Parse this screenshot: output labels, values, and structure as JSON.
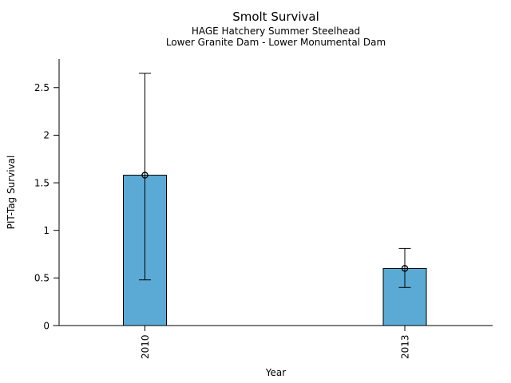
{
  "page": {
    "background_color": "#ffffff",
    "text_color": "#000000"
  },
  "chart_data": {
    "type": "bar",
    "title": "Smolt Survival",
    "subtitle1": "HAGE Hatchery Summer Steelhead",
    "subtitle2": "Lower Granite Dam - Lower Monumental Dam",
    "xlabel": "Year",
    "ylabel": "PIT-Tag Survival",
    "categories": [
      "2010",
      "2013"
    ],
    "series": [
      {
        "name": "PIT-Tag Survival",
        "values": [
          1.58,
          0.6
        ],
        "error_low": [
          0.48,
          0.4
        ],
        "error_high": [
          2.65,
          0.81
        ]
      }
    ],
    "yticks": [
      0,
      0.5,
      1,
      1.5,
      2,
      2.5
    ],
    "ytick_labels": [
      "0",
      "0.5",
      "1",
      "1.5",
      "2",
      "2.5"
    ],
    "ylim": [
      0,
      2.8
    ],
    "grid": false,
    "legend_position": "none",
    "marker": "open-circle",
    "bar_fill_color": "#5AAAD5",
    "bar_edge_color": "#000000",
    "errorbar_color": "#000000",
    "axis_color": "#000000"
  }
}
